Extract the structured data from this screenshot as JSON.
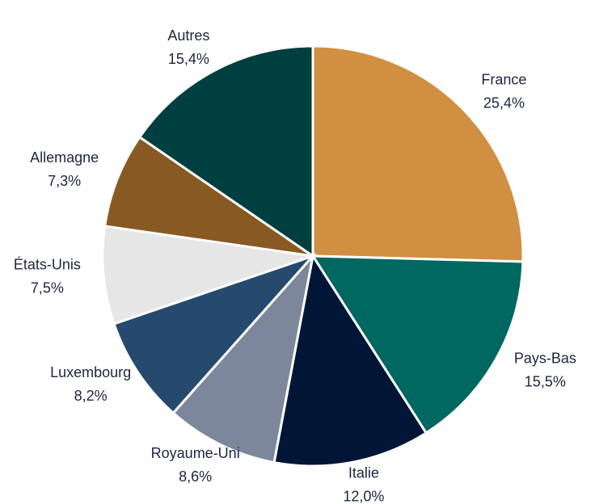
{
  "chart_data": {
    "type": "pie",
    "categories": [
      "France",
      "Pays-Bas",
      "Italie",
      "Royaume-Uni",
      "Luxembourg",
      "États-Unis",
      "Allemagne",
      "Autres"
    ],
    "values": [
      25.4,
      15.5,
      12.0,
      8.6,
      8.2,
      7.5,
      7.3,
      15.4
    ],
    "value_labels": [
      "25,4%",
      "15,5%",
      "12,0%",
      "8,6%",
      "8,2%",
      "7,5%",
      "7,3%",
      "15,4%"
    ],
    "colors": [
      "#d08f41",
      "#006860",
      "#011537",
      "#7d879c",
      "#254a6e",
      "#e6e6e6",
      "#875a23",
      "#003f3f"
    ]
  }
}
